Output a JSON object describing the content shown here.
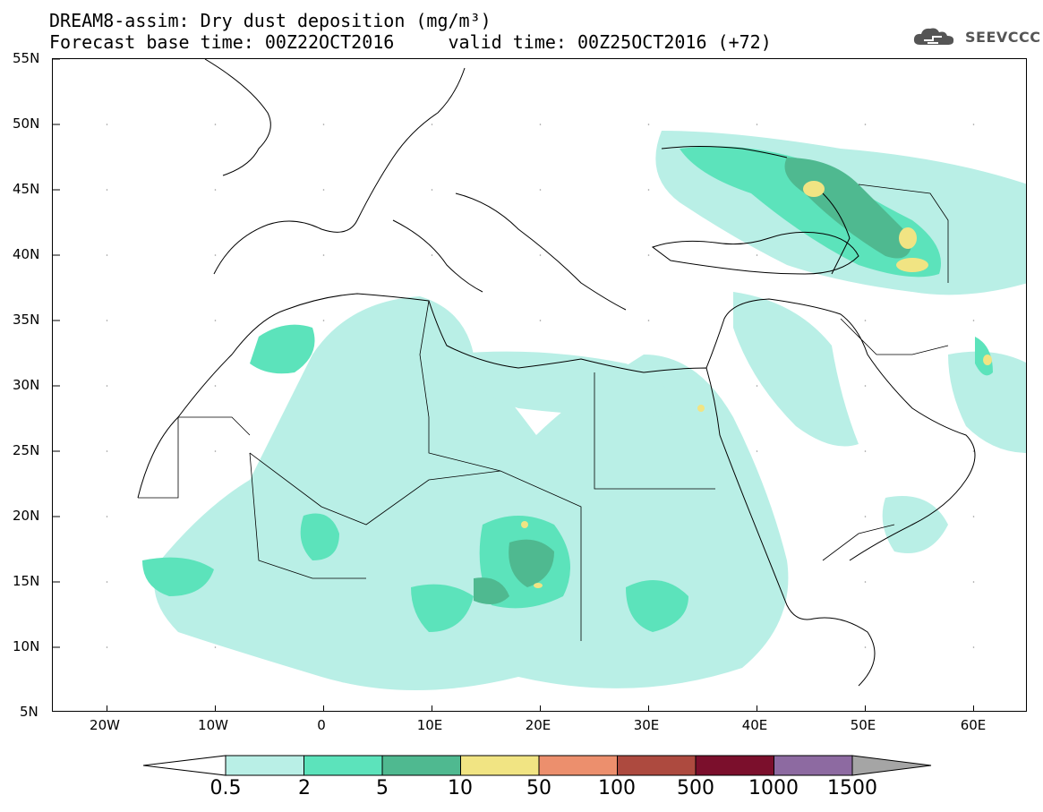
{
  "title": {
    "line1": "DREAM8-assim: Dry dust deposition (mg/m³)",
    "line2": "Forecast base time: 00Z22OCT2016     valid time: 00Z25OCT2016 (+72)"
  },
  "logo": {
    "text": "SEEVCCC",
    "icon": "cloud-icon"
  },
  "map": {
    "region": "North Africa, Europe, Middle East",
    "lat_labels": [
      "55N",
      "50N",
      "45N",
      "40N",
      "35N",
      "30N",
      "25N",
      "20N",
      "15N",
      "10N",
      "5N"
    ],
    "lon_labels": [
      "20W",
      "10W",
      "0",
      "10E",
      "20E",
      "30E",
      "40E",
      "50E",
      "60E"
    ],
    "lat_range": [
      5,
      55
    ],
    "lon_range": [
      -25,
      65
    ]
  },
  "colorbar": {
    "labels": [
      "0.5",
      "2",
      "5",
      "10",
      "50",
      "100",
      "500",
      "1000",
      "1500"
    ],
    "colors": [
      "#b9efe6",
      "#5ce3bb",
      "#4fb990",
      "#f1e483",
      "#ec8f6d",
      "#ad4a3f",
      "#7b0f2c",
      "#8d6aa1",
      "#a5a5a5"
    ],
    "under_color": "#ffffff"
  }
}
